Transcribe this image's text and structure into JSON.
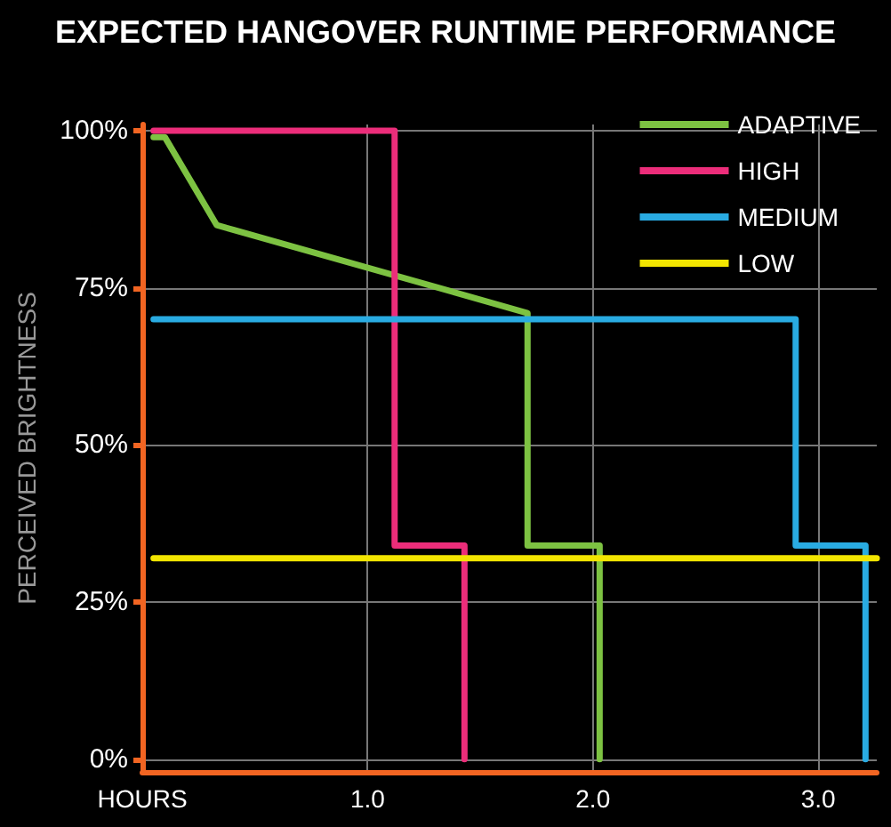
{
  "chart_data": {
    "type": "step",
    "title": "EXPECTED HANGOVER RUNTIME PERFORMANCE",
    "ylabel": "PERCEIVED BRIGHTNESS",
    "series": [
      {
        "name": "ADAPTIVE",
        "color": "#7dc242",
        "x": [
          0.05,
          0.1,
          0.33,
          1.71,
          1.71,
          2.03,
          2.03
        ],
        "values": [
          99,
          99,
          85,
          71,
          34,
          34,
          0
        ]
      },
      {
        "name": "HIGH",
        "color": "#ec2d7a",
        "x": [
          0.05,
          1.12,
          1.12,
          1.43,
          1.43
        ],
        "values": [
          100,
          100,
          34,
          34,
          0
        ]
      },
      {
        "name": "MEDIUM",
        "color": "#29abe2",
        "x": [
          0.05,
          2.9,
          2.9,
          3.21,
          3.21
        ],
        "values": [
          70,
          70,
          34,
          34,
          0
        ]
      },
      {
        "name": "LOW",
        "color": "#f2e500",
        "x": [
          0.05,
          3.26
        ],
        "values": [
          32,
          32
        ]
      }
    ],
    "xlim": [
      0,
      3.26
    ],
    "xticks": [
      {
        "value": 0,
        "label": "HOURS"
      },
      {
        "value": 1,
        "label": "1.0"
      },
      {
        "value": 2,
        "label": "2.0"
      },
      {
        "value": 3,
        "label": "3.0"
      }
    ],
    "ylim": [
      -2,
      101
    ],
    "yticks": [
      {
        "value": 0,
        "label": "0%"
      },
      {
        "value": 25,
        "label": "25%"
      },
      {
        "value": 50,
        "label": "50%"
      },
      {
        "value": 75,
        "label": "75%"
      },
      {
        "value": 100,
        "label": "100%"
      }
    ],
    "grid": true,
    "legend": "top right",
    "marker": "none",
    "line_style": "solid"
  }
}
